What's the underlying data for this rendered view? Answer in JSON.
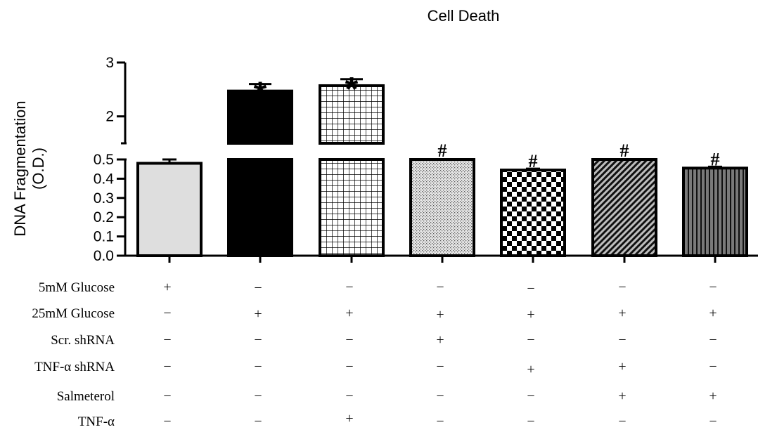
{
  "chart_data": {
    "type": "bar",
    "title": "Cell Death",
    "ylabel": [
      "DNA Fragmentation",
      "(O.D.)"
    ],
    "axis": {
      "broken": true,
      "lower_range": [
        0,
        0.5
      ],
      "upper_range": [
        1.5,
        3
      ],
      "lower_ticks": [
        "0.0",
        "0.1",
        "0.2",
        "0.3",
        "0.4",
        "0.5"
      ],
      "upper_ticks": [
        "2",
        "3"
      ]
    },
    "bars": [
      {
        "value": 0.48,
        "error": 0.02,
        "pattern": "light-gray",
        "marker": ""
      },
      {
        "value": 2.47,
        "error": 0.13,
        "pattern": "solid-black",
        "marker": "*"
      },
      {
        "value": 2.57,
        "error": 0.12,
        "pattern": "grid",
        "marker": "*"
      },
      {
        "value": 0.5,
        "error": 0.0,
        "pattern": "dots",
        "marker": "#"
      },
      {
        "value": 0.445,
        "error": 0.007,
        "pattern": "checker",
        "marker": "#"
      },
      {
        "value": 0.5,
        "error": 0.0,
        "pattern": "diagonal",
        "marker": "#"
      },
      {
        "value": 0.455,
        "error": 0.007,
        "pattern": "vertical-stripes",
        "marker": "#"
      }
    ],
    "conditions": [
      {
        "label": "5mM Glucose",
        "values": [
          "+",
          "−",
          "−",
          "−",
          "−",
          "−",
          "−"
        ]
      },
      {
        "label": "25mM Glucose",
        "values": [
          "−",
          "+",
          "+",
          "+",
          "+",
          "+",
          "+"
        ]
      },
      {
        "label": "Scr. shRNA",
        "values": [
          "−",
          "−",
          "−",
          "+",
          "−",
          "−",
          "−"
        ]
      },
      {
        "label": "TNF-α shRNA",
        "values": [
          "−",
          "−",
          "−",
          "−",
          "+",
          "+",
          "−"
        ]
      },
      {
        "label": "Salmeterol",
        "values": [
          "−",
          "−",
          "−",
          "−",
          "−",
          "+",
          "+"
        ]
      },
      {
        "label": "TNF-α",
        "values": [
          "−",
          "−",
          "+",
          "−",
          "−",
          "−",
          "−"
        ]
      }
    ]
  }
}
